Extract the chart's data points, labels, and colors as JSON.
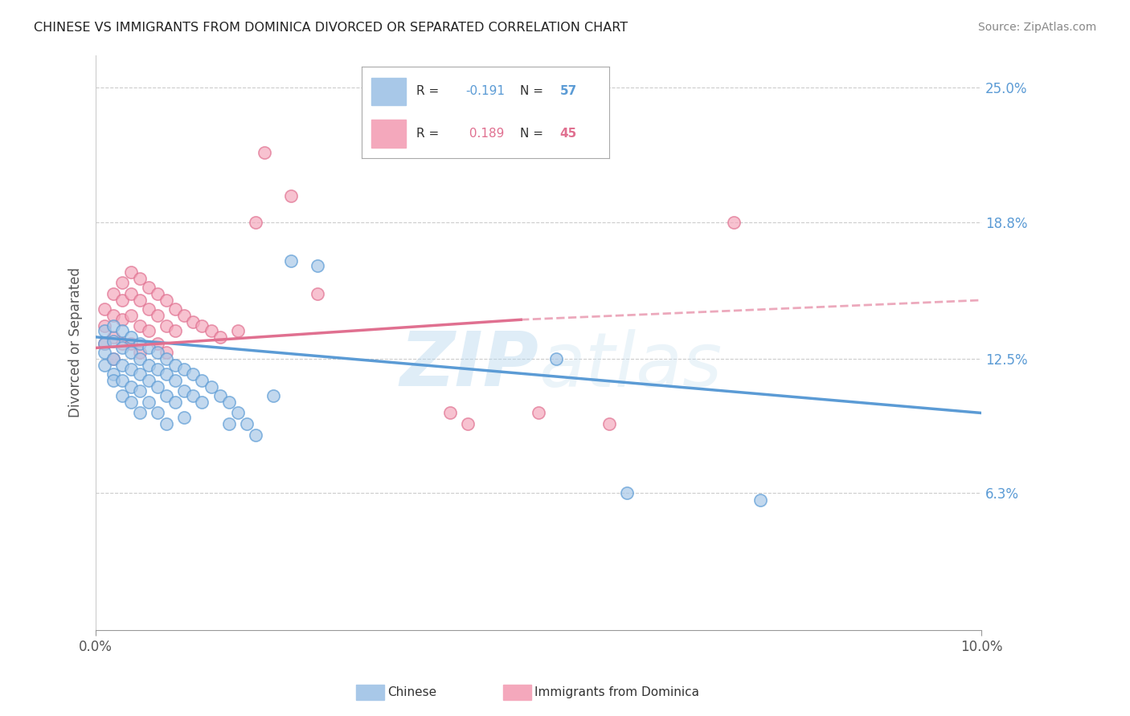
{
  "title": "CHINESE VS IMMIGRANTS FROM DOMINICA DIVORCED OR SEPARATED CORRELATION CHART",
  "source": "Source: ZipAtlas.com",
  "ylabel": "Divorced or Separated",
  "watermark": "ZIPatlas",
  "xlim": [
    0.0,
    0.1
  ],
  "ylim": [
    0.0,
    0.265
  ],
  "xtick_positions": [
    0.0,
    0.1
  ],
  "xtick_labels": [
    "0.0%",
    "10.0%"
  ],
  "ytick_labels": [
    "6.3%",
    "12.5%",
    "18.8%",
    "25.0%"
  ],
  "ytick_values": [
    0.063,
    0.125,
    0.188,
    0.25
  ],
  "blue_color": "#a8c8e8",
  "pink_color": "#f4a8bc",
  "blue_line_color": "#5b9bd5",
  "pink_line_color": "#e07090",
  "blue_line": {
    "x0": 0.0,
    "y0": 0.135,
    "x1": 0.1,
    "y1": 0.1
  },
  "pink_line_solid": {
    "x0": 0.0,
    "y0": 0.13,
    "x1": 0.048,
    "y1": 0.143
  },
  "pink_line_dashed": {
    "x0": 0.048,
    "y0": 0.143,
    "x1": 0.1,
    "y1": 0.152
  },
  "blue_scatter": [
    [
      0.001,
      0.138
    ],
    [
      0.001,
      0.132
    ],
    [
      0.001,
      0.128
    ],
    [
      0.001,
      0.122
    ],
    [
      0.002,
      0.14
    ],
    [
      0.002,
      0.133
    ],
    [
      0.002,
      0.125
    ],
    [
      0.002,
      0.118
    ],
    [
      0.002,
      0.115
    ],
    [
      0.003,
      0.138
    ],
    [
      0.003,
      0.13
    ],
    [
      0.003,
      0.122
    ],
    [
      0.003,
      0.115
    ],
    [
      0.003,
      0.108
    ],
    [
      0.004,
      0.135
    ],
    [
      0.004,
      0.128
    ],
    [
      0.004,
      0.12
    ],
    [
      0.004,
      0.112
    ],
    [
      0.004,
      0.105
    ],
    [
      0.005,
      0.132
    ],
    [
      0.005,
      0.125
    ],
    [
      0.005,
      0.118
    ],
    [
      0.005,
      0.11
    ],
    [
      0.005,
      0.1
    ],
    [
      0.006,
      0.13
    ],
    [
      0.006,
      0.122
    ],
    [
      0.006,
      0.115
    ],
    [
      0.006,
      0.105
    ],
    [
      0.007,
      0.128
    ],
    [
      0.007,
      0.12
    ],
    [
      0.007,
      0.112
    ],
    [
      0.007,
      0.1
    ],
    [
      0.008,
      0.125
    ],
    [
      0.008,
      0.118
    ],
    [
      0.008,
      0.108
    ],
    [
      0.008,
      0.095
    ],
    [
      0.009,
      0.122
    ],
    [
      0.009,
      0.115
    ],
    [
      0.009,
      0.105
    ],
    [
      0.01,
      0.12
    ],
    [
      0.01,
      0.11
    ],
    [
      0.01,
      0.098
    ],
    [
      0.011,
      0.118
    ],
    [
      0.011,
      0.108
    ],
    [
      0.012,
      0.115
    ],
    [
      0.012,
      0.105
    ],
    [
      0.013,
      0.112
    ],
    [
      0.014,
      0.108
    ],
    [
      0.015,
      0.105
    ],
    [
      0.015,
      0.095
    ],
    [
      0.016,
      0.1
    ],
    [
      0.017,
      0.095
    ],
    [
      0.018,
      0.09
    ],
    [
      0.02,
      0.108
    ],
    [
      0.022,
      0.17
    ],
    [
      0.025,
      0.168
    ],
    [
      0.052,
      0.125
    ],
    [
      0.06,
      0.063
    ],
    [
      0.075,
      0.06
    ]
  ],
  "pink_scatter": [
    [
      0.001,
      0.148
    ],
    [
      0.001,
      0.14
    ],
    [
      0.001,
      0.132
    ],
    [
      0.002,
      0.155
    ],
    [
      0.002,
      0.145
    ],
    [
      0.002,
      0.135
    ],
    [
      0.002,
      0.125
    ],
    [
      0.003,
      0.16
    ],
    [
      0.003,
      0.152
    ],
    [
      0.003,
      0.143
    ],
    [
      0.003,
      0.132
    ],
    [
      0.004,
      0.165
    ],
    [
      0.004,
      0.155
    ],
    [
      0.004,
      0.145
    ],
    [
      0.004,
      0.132
    ],
    [
      0.005,
      0.162
    ],
    [
      0.005,
      0.152
    ],
    [
      0.005,
      0.14
    ],
    [
      0.005,
      0.128
    ],
    [
      0.006,
      0.158
    ],
    [
      0.006,
      0.148
    ],
    [
      0.006,
      0.138
    ],
    [
      0.007,
      0.155
    ],
    [
      0.007,
      0.145
    ],
    [
      0.007,
      0.132
    ],
    [
      0.008,
      0.152
    ],
    [
      0.008,
      0.14
    ],
    [
      0.008,
      0.128
    ],
    [
      0.009,
      0.148
    ],
    [
      0.009,
      0.138
    ],
    [
      0.01,
      0.145
    ],
    [
      0.011,
      0.142
    ],
    [
      0.012,
      0.14
    ],
    [
      0.013,
      0.138
    ],
    [
      0.014,
      0.135
    ],
    [
      0.016,
      0.138
    ],
    [
      0.018,
      0.188
    ],
    [
      0.019,
      0.22
    ],
    [
      0.022,
      0.2
    ],
    [
      0.025,
      0.155
    ],
    [
      0.04,
      0.1
    ],
    [
      0.042,
      0.095
    ],
    [
      0.05,
      0.1
    ],
    [
      0.058,
      0.095
    ],
    [
      0.072,
      0.188
    ]
  ]
}
